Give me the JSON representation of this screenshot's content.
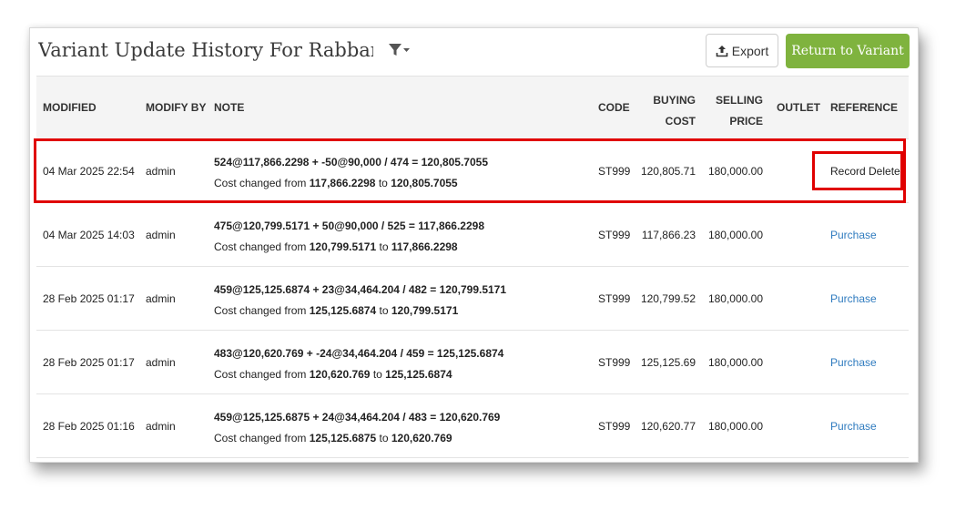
{
  "header": {
    "title": "Variant Update History For Rabbani Ba",
    "filter_icon": "filter-dropdown-icon",
    "export_label": "Export",
    "export_icon": "upload-icon",
    "return_label": "Return to Variant",
    "return_color": "#7fb33e"
  },
  "table": {
    "columns": {
      "modified": "MODIFIED",
      "modify_by": "MODIFY BY",
      "note": "NOTE",
      "code": "CODE",
      "buying_cost_1": "BUYING",
      "buying_cost_2": "COST",
      "selling_price_1": "SELLING",
      "selling_price_2": "PRICE",
      "outlet": "OUTLET",
      "reference": "REFERENCE"
    },
    "rows": [
      {
        "modified": "04 Mar 2025 22:54",
        "modify_by": "admin",
        "note_formula": "524@117,866.2298 + -50@90,000 / 474 = 120,805.7055",
        "note_prefix": "Cost changed from",
        "note_from": "117,866.2298",
        "note_to_word": "to",
        "note_to": "120,805.7055",
        "code": "ST999",
        "buying_cost": "120,805.71",
        "selling_price": "180,000.00",
        "outlet": "",
        "reference": "Record Deleted"
      },
      {
        "modified": "04 Mar 2025 14:03",
        "modify_by": "admin",
        "note_formula": "475@120,799.5171 + 50@90,000 / 525 = 117,866.2298",
        "note_prefix": "Cost changed from",
        "note_from": "120,799.5171",
        "note_to_word": "to",
        "note_to": "117,866.2298",
        "code": "ST999",
        "buying_cost": "117,866.23",
        "selling_price": "180,000.00",
        "outlet": "",
        "reference": "Purchase"
      },
      {
        "modified": "28 Feb 2025 01:17",
        "modify_by": "admin",
        "note_formula": "459@125,125.6874 + 23@34,464.204 / 482 = 120,799.5171",
        "note_prefix": "Cost changed from",
        "note_from": "125,125.6874",
        "note_to_word": "to",
        "note_to": "120,799.5171",
        "code": "ST999",
        "buying_cost": "120,799.52",
        "selling_price": "180,000.00",
        "outlet": "",
        "reference": "Purchase"
      },
      {
        "modified": "28 Feb 2025 01:17",
        "modify_by": "admin",
        "note_formula": "483@120,620.769 + -24@34,464.204 / 459 = 125,125.6874",
        "note_prefix": "Cost changed from",
        "note_from": "120,620.769",
        "note_to_word": "to",
        "note_to": "125,125.6874",
        "code": "ST999",
        "buying_cost": "125,125.69",
        "selling_price": "180,000.00",
        "outlet": "",
        "reference": "Purchase"
      },
      {
        "modified": "28 Feb 2025 01:16",
        "modify_by": "admin",
        "note_formula": "459@125,125.6875 + 24@34,464.204 / 483 = 120,620.769",
        "note_prefix": "Cost changed from",
        "note_from": "125,125.6875",
        "note_to_word": "to",
        "note_to": "120,620.769",
        "code": "ST999",
        "buying_cost": "120,620.77",
        "selling_price": "180,000.00",
        "outlet": "",
        "reference": "Purchase"
      }
    ]
  },
  "annotation": {
    "highlight_color": "#e00000"
  }
}
